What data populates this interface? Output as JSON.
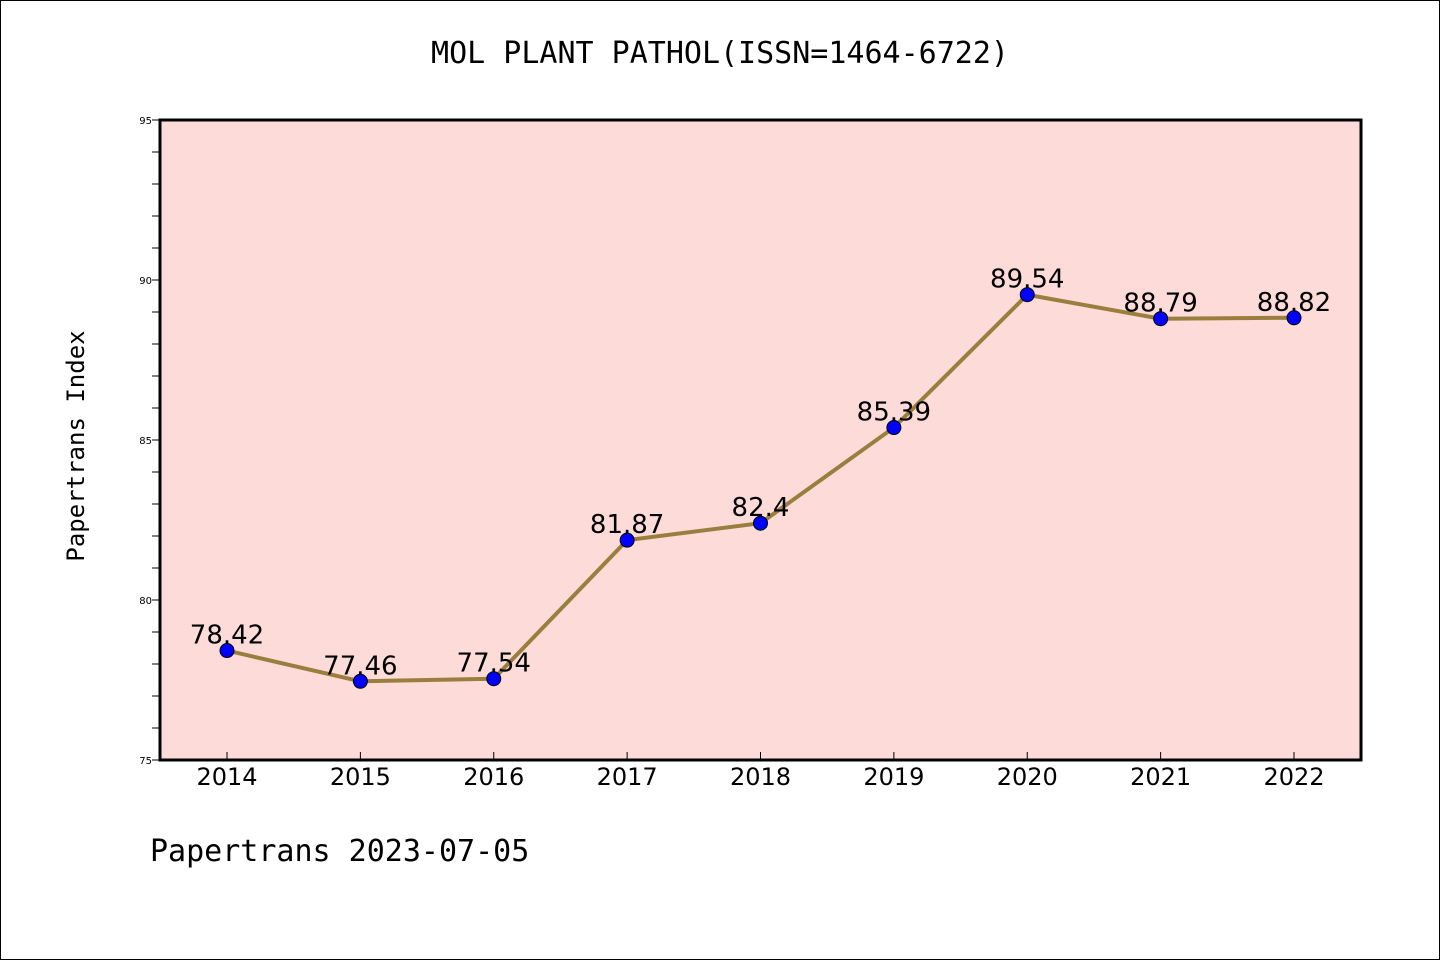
{
  "page": {
    "footer": "Papertrans 2023-07-05"
  },
  "colors": {
    "plot_background": "#fddbd8",
    "line": "#9a7e3e",
    "marker": "#0000ff",
    "axis": "#000000"
  },
  "chart_data": {
    "type": "line",
    "title": "MOL PLANT PATHOL(ISSN=1464-6722)",
    "xlabel": "",
    "ylabel": "Papertrans Index",
    "categories": [
      "2014",
      "2015",
      "2016",
      "2017",
      "2018",
      "2019",
      "2020",
      "2021",
      "2022"
    ],
    "series": [
      {
        "values": [
          78.42,
          77.46,
          77.54,
          81.87,
          82.4,
          85.39,
          89.54,
          88.79,
          88.82
        ],
        "labels": [
          "78.42",
          "77.46",
          "77.54",
          "81.87",
          "82.4",
          "85.39",
          "89.54",
          "88.79",
          "88.82"
        ]
      }
    ],
    "ylim": [
      75,
      95
    ],
    "yticks": [
      75,
      80,
      85,
      90,
      95
    ],
    "grid": false,
    "legend": "none"
  }
}
